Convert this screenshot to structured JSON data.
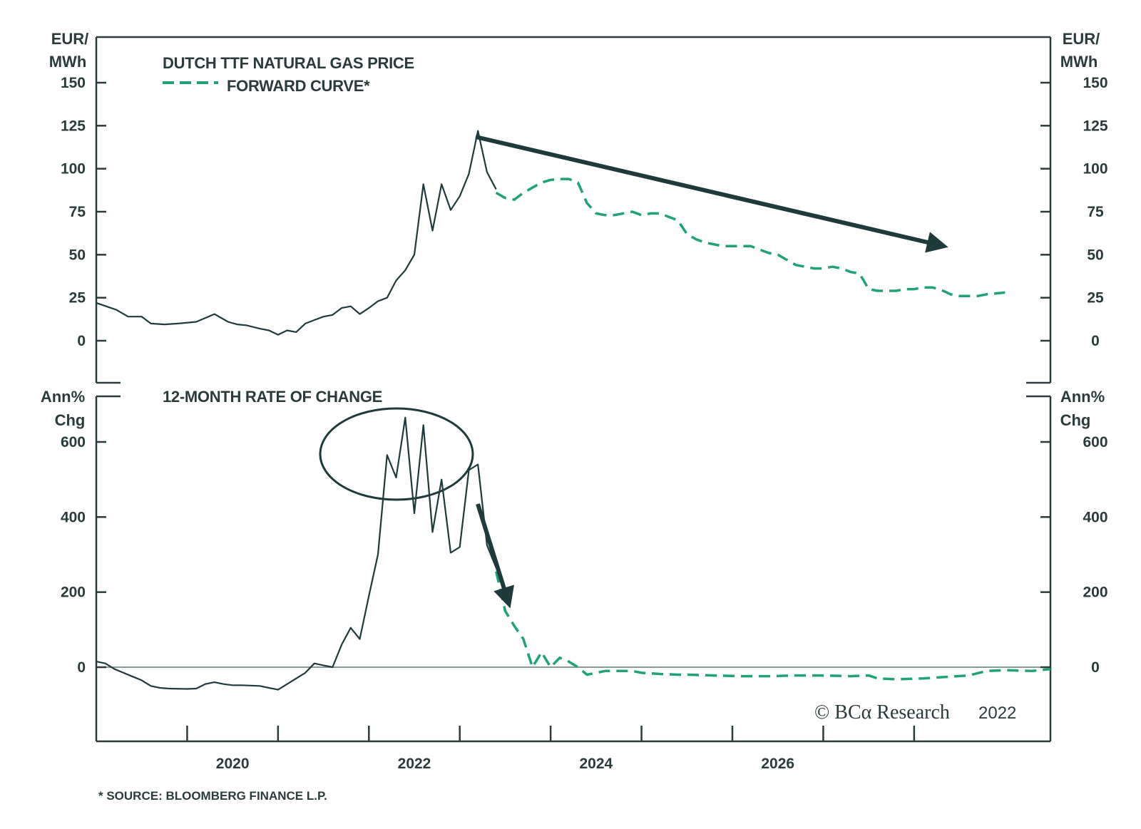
{
  "chart_data": [
    {
      "type": "line",
      "title": "DUTCH TTF NATURAL GAS PRICE",
      "ylabel_left": [
        "EUR/",
        "MWh"
      ],
      "ylabel_right": [
        "EUR/",
        "MWh"
      ],
      "ylim": [
        -25,
        155
      ],
      "yticks": [
        0,
        25,
        50,
        75,
        100,
        125,
        150
      ],
      "series": [
        {
          "name": "",
          "style": "solid",
          "color": "#1f3a3a",
          "points": [
            [
              2018.5,
              22
            ],
            [
              2018.72,
              18
            ],
            [
              2018.85,
              14
            ],
            [
              2019.0,
              14
            ],
            [
              2019.1,
              10
            ],
            [
              2019.25,
              9.5
            ],
            [
              2019.4,
              10
            ],
            [
              2019.6,
              11
            ],
            [
              2019.8,
              15.5
            ],
            [
              2019.95,
              11
            ],
            [
              2020.05,
              9.5
            ],
            [
              2020.15,
              9
            ],
            [
              2020.3,
              7
            ],
            [
              2020.4,
              6
            ],
            [
              2020.5,
              3.5
            ],
            [
              2020.6,
              6
            ],
            [
              2020.7,
              5
            ],
            [
              2020.8,
              10
            ],
            [
              2020.9,
              12
            ],
            [
              2021.0,
              14
            ],
            [
              2021.1,
              15
            ],
            [
              2021.2,
              19
            ],
            [
              2021.3,
              20
            ],
            [
              2021.4,
              15.5
            ],
            [
              2021.5,
              19
            ],
            [
              2021.6,
              23
            ],
            [
              2021.7,
              25
            ],
            [
              2021.8,
              35
            ],
            [
              2021.9,
              41
            ],
            [
              2022.0,
              50
            ],
            [
              2022.1,
              91
            ],
            [
              2022.2,
              64
            ],
            [
              2022.3,
              91
            ],
            [
              2022.4,
              76
            ],
            [
              2022.5,
              84
            ],
            [
              2022.6,
              97
            ],
            [
              2022.7,
              122
            ],
            [
              2022.8,
              98
            ],
            [
              2022.9,
              88
            ]
          ]
        },
        {
          "name": "FORWARD CURVE*",
          "style": "dashed",
          "color": "#1fa374",
          "points": [
            [
              2022.9,
              86
            ],
            [
              2023.0,
              83
            ],
            [
              2023.1,
              82
            ],
            [
              2023.2,
              86
            ],
            [
              2023.3,
              89
            ],
            [
              2023.4,
              92
            ],
            [
              2023.5,
              93.5
            ],
            [
              2023.6,
              94
            ],
            [
              2023.7,
              94
            ],
            [
              2023.8,
              92
            ],
            [
              2023.9,
              80
            ],
            [
              2024.0,
              74
            ],
            [
              2024.1,
              73
            ],
            [
              2024.2,
              73
            ],
            [
              2024.3,
              74
            ],
            [
              2024.4,
              75
            ],
            [
              2024.5,
              73
            ],
            [
              2024.6,
              74
            ],
            [
              2024.7,
              74
            ],
            [
              2024.8,
              72
            ],
            [
              2024.9,
              70
            ],
            [
              2025.0,
              62
            ],
            [
              2025.1,
              59
            ],
            [
              2025.2,
              57
            ],
            [
              2025.3,
              56
            ],
            [
              2025.4,
              55
            ],
            [
              2025.5,
              55
            ],
            [
              2025.6,
              55
            ],
            [
              2025.7,
              55
            ],
            [
              2025.8,
              53
            ],
            [
              2025.9,
              51
            ],
            [
              2026.0,
              50
            ],
            [
              2026.1,
              47
            ],
            [
              2026.2,
              44
            ],
            [
              2026.3,
              43
            ],
            [
              2026.4,
              42
            ],
            [
              2026.5,
              42
            ],
            [
              2026.6,
              43
            ],
            [
              2026.7,
              42
            ],
            [
              2026.8,
              40
            ],
            [
              2026.9,
              39
            ],
            [
              2027.0,
              30
            ],
            [
              2027.1,
              29
            ],
            [
              2027.2,
              29
            ],
            [
              2027.3,
              29
            ],
            [
              2027.4,
              30
            ],
            [
              2027.5,
              30
            ],
            [
              2027.6,
              31
            ],
            [
              2027.7,
              31
            ],
            [
              2027.8,
              29.5
            ],
            [
              2027.9,
              27
            ],
            [
              2028.0,
              26
            ],
            [
              2028.1,
              26
            ],
            [
              2028.2,
              26
            ],
            [
              2028.3,
              27
            ],
            [
              2028.5,
              28
            ]
          ]
        }
      ],
      "annotations": [
        "down-trend-arrow"
      ]
    },
    {
      "type": "line",
      "title": "12-MONTH RATE OF CHANGE",
      "ylabel_left": [
        "Ann%",
        "Chg"
      ],
      "ylabel_right": [
        "Ann%",
        "Chg"
      ],
      "ylim": [
        -200,
        720
      ],
      "yticks": [
        0,
        200,
        400,
        600
      ],
      "series": [
        {
          "name": "",
          "style": "solid",
          "color": "#1f3a3a",
          "points": [
            [
              2018.5,
              15
            ],
            [
              2018.6,
              10
            ],
            [
              2018.7,
              -5
            ],
            [
              2018.8,
              -15
            ],
            [
              2018.9,
              -25
            ],
            [
              2019.0,
              -35
            ],
            [
              2019.1,
              -50
            ],
            [
              2019.2,
              -55
            ],
            [
              2019.3,
              -57
            ],
            [
              2019.5,
              -58
            ],
            [
              2019.6,
              -57
            ],
            [
              2019.7,
              -45
            ],
            [
              2019.8,
              -40
            ],
            [
              2019.9,
              -45
            ],
            [
              2020.0,
              -48
            ],
            [
              2020.1,
              -48
            ],
            [
              2020.3,
              -50
            ],
            [
              2020.4,
              -55
            ],
            [
              2020.5,
              -60
            ],
            [
              2020.6,
              -45
            ],
            [
              2020.7,
              -30
            ],
            [
              2020.8,
              -15
            ],
            [
              2020.9,
              10
            ],
            [
              2021.0,
              5
            ],
            [
              2021.1,
              0
            ],
            [
              2021.2,
              60
            ],
            [
              2021.3,
              105
            ],
            [
              2021.4,
              75
            ],
            [
              2021.5,
              190
            ],
            [
              2021.6,
              300
            ],
            [
              2021.7,
              565
            ],
            [
              2021.8,
              505
            ],
            [
              2021.9,
              665
            ],
            [
              2022.0,
              410
            ],
            [
              2022.1,
              645
            ],
            [
              2022.2,
              360
            ],
            [
              2022.3,
              500
            ],
            [
              2022.4,
              305
            ],
            [
              2022.5,
              320
            ],
            [
              2022.6,
              525
            ],
            [
              2022.7,
              540
            ],
            [
              2022.8,
              325
            ],
            [
              2022.9,
              265
            ]
          ]
        },
        {
          "name": "FORWARD CURVE*",
          "style": "dashed",
          "color": "#1fa374",
          "points": [
            [
              2022.9,
              255
            ],
            [
              2023.0,
              150
            ],
            [
              2023.1,
              110
            ],
            [
              2023.2,
              75
            ],
            [
              2023.3,
              0
            ],
            [
              2023.4,
              40
            ],
            [
              2023.5,
              0
            ],
            [
              2023.6,
              25
            ],
            [
              2023.7,
              15
            ],
            [
              2023.8,
              0
            ],
            [
              2023.9,
              -20
            ],
            [
              2024.0,
              -15
            ],
            [
              2024.1,
              -10
            ],
            [
              2024.2,
              -10
            ],
            [
              2024.4,
              -10
            ],
            [
              2024.5,
              -15
            ],
            [
              2024.7,
              -18
            ],
            [
              2024.9,
              -20
            ],
            [
              2025.0,
              -20
            ],
            [
              2025.3,
              -22
            ],
            [
              2025.6,
              -24
            ],
            [
              2025.9,
              -24
            ],
            [
              2026.2,
              -22
            ],
            [
              2026.5,
              -22
            ],
            [
              2026.8,
              -24
            ],
            [
              2027.0,
              -22
            ],
            [
              2027.1,
              -30
            ],
            [
              2027.3,
              -32
            ],
            [
              2027.6,
              -30
            ],
            [
              2027.9,
              -25
            ],
            [
              2028.1,
              -22
            ],
            [
              2028.3,
              -10
            ],
            [
              2028.5,
              -8
            ],
            [
              2028.8,
              -10
            ],
            [
              2029.0,
              -5
            ]
          ]
        }
      ],
      "annotations": [
        "peak-circle",
        "down-arrow"
      ]
    }
  ],
  "x_axis": {
    "range": [
      2018.5,
      2029.0
    ],
    "tick_labels": [
      "2020",
      "2022",
      "2024",
      "2026"
    ],
    "tick_label_positions": [
      2020,
      2022,
      2024,
      2026
    ],
    "major_ticks": [
      2019.5,
      2020.5,
      2021.5,
      2022.5,
      2023.5,
      2024.5,
      2025.5,
      2026.5,
      2027.5
    ]
  },
  "legend": {
    "label_line1": "DUTCH TTF NATURAL GAS PRICE",
    "label_line2": "FORWARD CURVE*"
  },
  "copyright": {
    "text": "© BCα Research",
    "year": "2022"
  },
  "footnote": "* SOURCE: BLOOMBERG FINANCE L.P.",
  "colors": {
    "actual": "#1f3a3a",
    "forward": "#1fa374",
    "frame": "#2b3a3a",
    "zero_line": "#8a9999"
  }
}
